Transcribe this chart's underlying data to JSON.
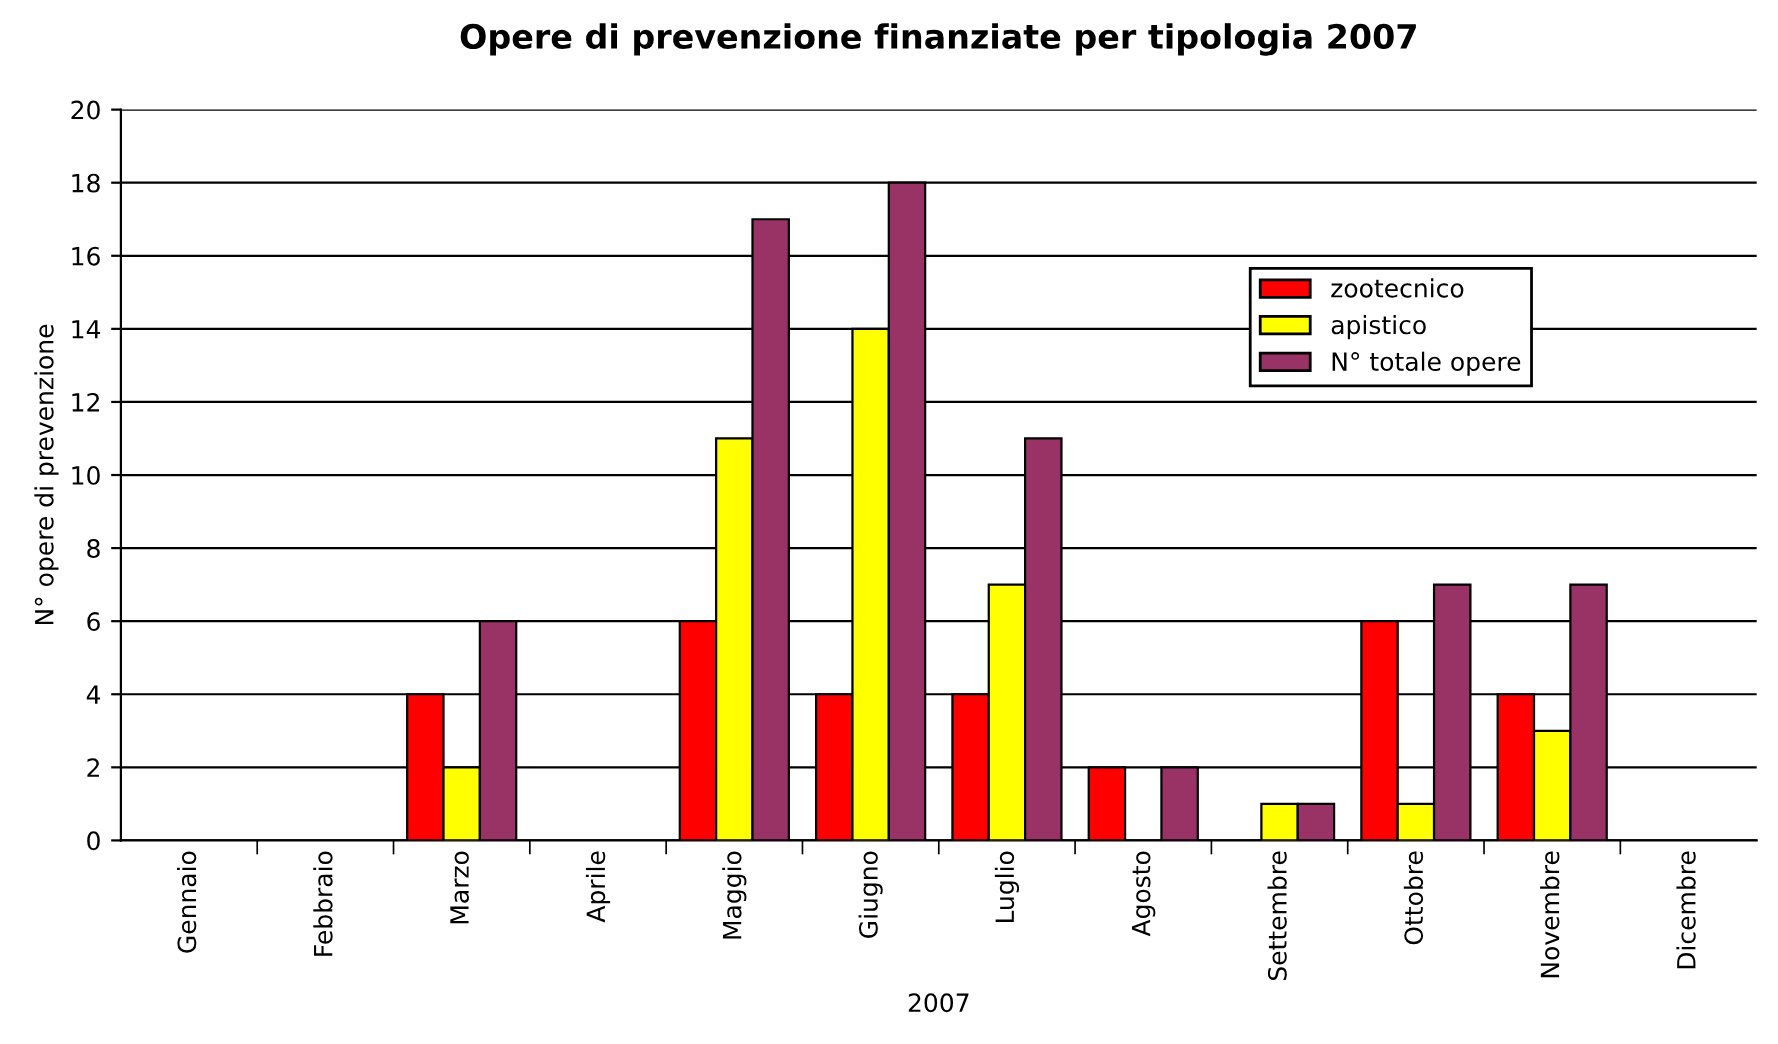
{
  "chart_data": {
    "type": "bar",
    "title": "Opere di prevenzione finanziate per tipologia 2007",
    "xlabel": "2007",
    "ylabel": "N° opere di prevenzione",
    "categories": [
      "Gennaio",
      "Febbraio",
      "Marzo",
      "Aprile",
      "Maggio",
      "Giugno",
      "Luglio",
      "Agosto",
      "Settembre",
      "Ottobre",
      "Novembre",
      "Dicembre"
    ],
    "series": [
      {
        "name": "zootecnico",
        "color": "#ff0000",
        "values": [
          0,
          0,
          4,
          0,
          6,
          4,
          4,
          2,
          0,
          6,
          4,
          0
        ]
      },
      {
        "name": "apistico",
        "color": "#ffff00",
        "values": [
          0,
          0,
          2,
          0,
          11,
          14,
          7,
          0,
          1,
          1,
          3,
          0
        ]
      },
      {
        "name": "N° totale opere",
        "color": "#993366",
        "values": [
          0,
          0,
          6,
          0,
          17,
          18,
          11,
          2,
          1,
          7,
          7,
          0
        ]
      }
    ],
    "ylim": [
      0,
      20
    ],
    "yticks": [
      0,
      2,
      4,
      6,
      8,
      10,
      12,
      14,
      16,
      18,
      20
    ],
    "grid": "y",
    "legend": "top right"
  }
}
